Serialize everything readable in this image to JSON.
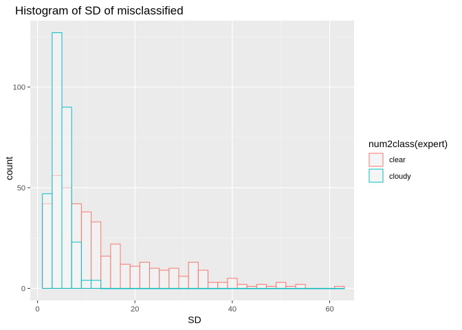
{
  "chart_data": {
    "type": "bar",
    "subtype": "histogram",
    "title": "Histogram of SD of misclassified",
    "xlabel": "SD",
    "ylabel": "count",
    "xlim": [
      -1.5,
      65
    ],
    "ylim": [
      -6,
      133
    ],
    "x_ticks": [
      0,
      20,
      40,
      60
    ],
    "y_ticks": [
      0,
      50,
      100
    ],
    "x_tick_labels": [
      "0",
      "20",
      "40",
      "60"
    ],
    "y_tick_labels": [
      "0",
      "50",
      "100"
    ],
    "grid": true,
    "bin_width": 2,
    "legend": {
      "title": "num2class(expert)",
      "placement": "right",
      "entries": [
        "clear",
        "cloudy"
      ]
    },
    "series": [
      {
        "name": "clear",
        "color": "#F8766D",
        "bins": [
          {
            "x0": 1,
            "x1": 3,
            "count": 42
          },
          {
            "x0": 3,
            "x1": 5,
            "count": 56
          },
          {
            "x0": 5,
            "x1": 7,
            "count": 50
          },
          {
            "x0": 7,
            "x1": 9,
            "count": 42
          },
          {
            "x0": 9,
            "x1": 11,
            "count": 38
          },
          {
            "x0": 11,
            "x1": 13,
            "count": 33
          },
          {
            "x0": 13,
            "x1": 15,
            "count": 16
          },
          {
            "x0": 15,
            "x1": 17,
            "count": 22
          },
          {
            "x0": 17,
            "x1": 19,
            "count": 12
          },
          {
            "x0": 19,
            "x1": 21,
            "count": 11
          },
          {
            "x0": 21,
            "x1": 23,
            "count": 13
          },
          {
            "x0": 23,
            "x1": 25,
            "count": 10
          },
          {
            "x0": 25,
            "x1": 27,
            "count": 9
          },
          {
            "x0": 27,
            "x1": 29,
            "count": 10
          },
          {
            "x0": 29,
            "x1": 31,
            "count": 6
          },
          {
            "x0": 31,
            "x1": 33,
            "count": 13
          },
          {
            "x0": 33,
            "x1": 35,
            "count": 9
          },
          {
            "x0": 35,
            "x1": 37,
            "count": 3
          },
          {
            "x0": 37,
            "x1": 39,
            "count": 3
          },
          {
            "x0": 39,
            "x1": 41,
            "count": 5
          },
          {
            "x0": 41,
            "x1": 43,
            "count": 2
          },
          {
            "x0": 43,
            "x1": 45,
            "count": 1
          },
          {
            "x0": 45,
            "x1": 47,
            "count": 2
          },
          {
            "x0": 47,
            "x1": 49,
            "count": 1
          },
          {
            "x0": 49,
            "x1": 51,
            "count": 3
          },
          {
            "x0": 51,
            "x1": 53,
            "count": 1
          },
          {
            "x0": 53,
            "x1": 55,
            "count": 2
          },
          {
            "x0": 55,
            "x1": 57,
            "count": 0
          },
          {
            "x0": 57,
            "x1": 59,
            "count": 0
          },
          {
            "x0": 59,
            "x1": 61,
            "count": 0
          },
          {
            "x0": 61,
            "x1": 63,
            "count": 1
          }
        ]
      },
      {
        "name": "cloudy",
        "color": "#00BFC4",
        "bins": [
          {
            "x0": 1,
            "x1": 3,
            "count": 47
          },
          {
            "x0": 3,
            "x1": 5,
            "count": 127
          },
          {
            "x0": 5,
            "x1": 7,
            "count": 90
          },
          {
            "x0": 7,
            "x1": 9,
            "count": 23
          },
          {
            "x0": 9,
            "x1": 11,
            "count": 4
          },
          {
            "x0": 11,
            "x1": 13,
            "count": 4
          },
          {
            "x0": 13,
            "x1": 15,
            "count": 0
          },
          {
            "x0": 15,
            "x1": 17,
            "count": 0
          },
          {
            "x0": 17,
            "x1": 19,
            "count": 0
          },
          {
            "x0": 19,
            "x1": 21,
            "count": 0
          },
          {
            "x0": 21,
            "x1": 23,
            "count": 0
          },
          {
            "x0": 23,
            "x1": 25,
            "count": 0
          },
          {
            "x0": 25,
            "x1": 27,
            "count": 0
          },
          {
            "x0": 27,
            "x1": 29,
            "count": 0
          },
          {
            "x0": 29,
            "x1": 31,
            "count": 0
          },
          {
            "x0": 31,
            "x1": 33,
            "count": 0
          },
          {
            "x0": 33,
            "x1": 35,
            "count": 0
          },
          {
            "x0": 35,
            "x1": 37,
            "count": 0
          },
          {
            "x0": 37,
            "x1": 39,
            "count": 0
          },
          {
            "x0": 39,
            "x1": 41,
            "count": 0
          },
          {
            "x0": 41,
            "x1": 43,
            "count": 0
          },
          {
            "x0": 43,
            "x1": 45,
            "count": 0
          },
          {
            "x0": 45,
            "x1": 47,
            "count": 0
          },
          {
            "x0": 47,
            "x1": 49,
            "count": 0
          },
          {
            "x0": 49,
            "x1": 51,
            "count": 0
          },
          {
            "x0": 51,
            "x1": 53,
            "count": 0
          },
          {
            "x0": 53,
            "x1": 55,
            "count": 0
          },
          {
            "x0": 55,
            "x1": 57,
            "count": 0
          },
          {
            "x0": 57,
            "x1": 59,
            "count": 0
          },
          {
            "x0": 59,
            "x1": 61,
            "count": 0
          },
          {
            "x0": 61,
            "x1": 63,
            "count": 0
          }
        ]
      }
    ]
  },
  "theme": {
    "panel_bg": "#EBEBEB",
    "grid_major": "#FFFFFF",
    "grid_minor": "#F5F5F5",
    "bar_fill": "#F5F5F5",
    "tick_color": "#333333"
  }
}
